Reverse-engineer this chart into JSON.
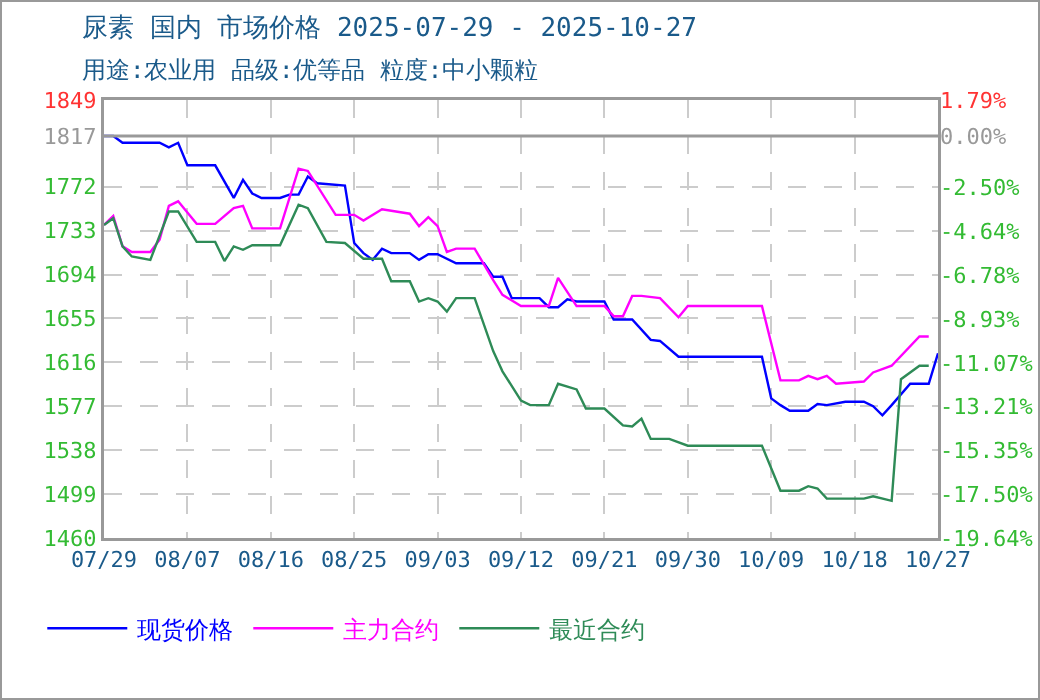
{
  "chart_data": {
    "type": "line",
    "title": "尿素 国内 市场价格 2025-07-29 - 2025-10-27",
    "subtitle": "用途:农业用 品级:优等品 粒度:中小颗粒",
    "xlim": [
      "2025-07-29",
      "2025-10-27"
    ],
    "xticks": [
      {
        "value": "2025-07-29",
        "label": "07/29"
      },
      {
        "value": "2025-08-07",
        "label": "08/07"
      },
      {
        "value": "2025-08-16",
        "label": "08/16"
      },
      {
        "value": "2025-08-25",
        "label": "08/25"
      },
      {
        "value": "2025-09-03",
        "label": "09/03"
      },
      {
        "value": "2025-09-12",
        "label": "09/12"
      },
      {
        "value": "2025-09-21",
        "label": "09/21"
      },
      {
        "value": "2025-09-30",
        "label": "09/30"
      },
      {
        "value": "2025-10-09",
        "label": "10/09"
      },
      {
        "value": "2025-10-18",
        "label": "10/18"
      },
      {
        "value": "2025-10-27",
        "label": "10/27"
      }
    ],
    "ylim": [
      1460,
      1849
    ],
    "yticks": [
      1460,
      1499,
      1538,
      1577,
      1616,
      1655,
      1694,
      1733,
      1772,
      1817,
      1849
    ],
    "y2lim": [
      -19.64,
      1.79
    ],
    "y2ticks": [
      {
        "value": -19.64,
        "label": "-19.64%"
      },
      {
        "value": -17.5,
        "label": "-17.50%"
      },
      {
        "value": -15.35,
        "label": "-15.35%"
      },
      {
        "value": -13.21,
        "label": "-13.21%"
      },
      {
        "value": -11.07,
        "label": "-11.07%"
      },
      {
        "value": -8.93,
        "label": "-8.93%"
      },
      {
        "value": -6.78,
        "label": "-6.78%"
      },
      {
        "value": -4.64,
        "label": "-4.64%"
      },
      {
        "value": -2.5,
        "label": "-2.50%"
      },
      {
        "value": 0,
        "label": "0.00%"
      },
      {
        "value": 1.79,
        "label": "1.79%"
      }
    ],
    "ref_lines": [
      {
        "axis": "y",
        "value": 1817,
        "color": "#999999"
      }
    ],
    "grid": true,
    "legend": "bottom",
    "marker": "none",
    "line_style": "solid",
    "series": [
      {
        "name": "现货价格",
        "color": "#0000ff",
        "x": [
          "2025-07-29",
          "2025-07-30",
          "2025-07-31",
          "2025-08-04",
          "2025-08-05",
          "2025-08-06",
          "2025-08-07",
          "2025-08-10",
          "2025-08-12",
          "2025-08-13",
          "2025-08-14",
          "2025-08-15",
          "2025-08-17",
          "2025-08-18",
          "2025-08-19",
          "2025-08-20",
          "2025-08-21",
          "2025-08-24",
          "2025-08-25",
          "2025-08-26",
          "2025-08-27",
          "2025-08-28",
          "2025-08-29",
          "2025-08-31",
          "2025-09-01",
          "2025-09-02",
          "2025-09-03",
          "2025-09-05",
          "2025-09-08",
          "2025-09-09",
          "2025-09-10",
          "2025-09-11",
          "2025-09-14",
          "2025-09-15",
          "2025-09-16",
          "2025-09-17",
          "2025-09-18",
          "2025-09-21",
          "2025-09-22",
          "2025-09-24",
          "2025-09-26",
          "2025-09-27",
          "2025-09-29",
          "2025-10-08",
          "2025-10-09",
          "2025-10-10",
          "2025-10-11",
          "2025-10-13",
          "2025-10-14",
          "2025-10-15",
          "2025-10-17",
          "2025-10-19",
          "2025-10-20",
          "2025-10-21",
          "2025-10-22",
          "2025-10-24",
          "2025-10-26",
          "2025-10-27"
        ],
        "values": [
          1817,
          1817,
          1811,
          1811,
          1807,
          1811,
          1791,
          1791,
          1762,
          1778,
          1766,
          1762,
          1762,
          1765,
          1765,
          1781,
          1775,
          1773,
          1722,
          1713,
          1707,
          1717,
          1713,
          1713,
          1707,
          1712,
          1712,
          1704,
          1704,
          1692,
          1692,
          1673,
          1673,
          1665,
          1665,
          1672,
          1670,
          1670,
          1654,
          1654,
          1636,
          1635,
          1621,
          1621,
          1584,
          1578,
          1573,
          1573,
          1579,
          1578,
          1581,
          1581,
          1577,
          1569,
          1578,
          1597,
          1597,
          1624
        ]
      },
      {
        "name": "主力合约",
        "color": "#ff00ff",
        "x": [
          "2025-07-29",
          "2025-07-30",
          "2025-07-31",
          "2025-08-01",
          "2025-08-03",
          "2025-08-04",
          "2025-08-05",
          "2025-08-06",
          "2025-08-08",
          "2025-08-10",
          "2025-08-12",
          "2025-08-13",
          "2025-08-14",
          "2025-08-17",
          "2025-08-19",
          "2025-08-20",
          "2025-08-23",
          "2025-08-25",
          "2025-08-26",
          "2025-08-28",
          "2025-08-31",
          "2025-09-01",
          "2025-09-02",
          "2025-09-03",
          "2025-09-04",
          "2025-09-05",
          "2025-09-07",
          "2025-09-09",
          "2025-09-10",
          "2025-09-12",
          "2025-09-15",
          "2025-09-16",
          "2025-09-18",
          "2025-09-21",
          "2025-09-22",
          "2025-09-23",
          "2025-09-24",
          "2025-09-25",
          "2025-09-27",
          "2025-09-29",
          "2025-09-30",
          "2025-10-08",
          "2025-10-10",
          "2025-10-12",
          "2025-10-13",
          "2025-10-14",
          "2025-10-15",
          "2025-10-16",
          "2025-10-19",
          "2025-10-20",
          "2025-10-22",
          "2025-10-25",
          "2025-10-26"
        ],
        "values": [
          1738,
          1746,
          1719,
          1714,
          1714,
          1725,
          1755,
          1759,
          1739,
          1739,
          1753,
          1755,
          1735,
          1735,
          1788,
          1786,
          1747,
          1747,
          1742,
          1752,
          1748,
          1737,
          1745,
          1737,
          1714,
          1717,
          1717,
          1689,
          1676,
          1666,
          1666,
          1691,
          1666,
          1666,
          1657,
          1657,
          1675,
          1675,
          1673,
          1656,
          1666,
          1666,
          1600,
          1600,
          1604,
          1601,
          1604,
          1597,
          1599,
          1607,
          1613,
          1639,
          1639
        ]
      },
      {
        "name": "最近合约",
        "color": "#2e8b57",
        "x": [
          "2025-07-29",
          "2025-07-30",
          "2025-07-31",
          "2025-08-01",
          "2025-08-03",
          "2025-08-05",
          "2025-08-06",
          "2025-08-08",
          "2025-08-10",
          "2025-08-11",
          "2025-08-12",
          "2025-08-13",
          "2025-08-14",
          "2025-08-17",
          "2025-08-19",
          "2025-08-20",
          "2025-08-22",
          "2025-08-24",
          "2025-08-26",
          "2025-08-28",
          "2025-08-29",
          "2025-08-31",
          "2025-09-01",
          "2025-09-02",
          "2025-09-03",
          "2025-09-04",
          "2025-09-05",
          "2025-09-07",
          "2025-09-09",
          "2025-09-10",
          "2025-09-12",
          "2025-09-13",
          "2025-09-15",
          "2025-09-16",
          "2025-09-18",
          "2025-09-19",
          "2025-09-21",
          "2025-09-23",
          "2025-09-24",
          "2025-09-25",
          "2025-09-26",
          "2025-09-28",
          "2025-09-30",
          "2025-10-08",
          "2025-10-10",
          "2025-10-12",
          "2025-10-13",
          "2025-10-14",
          "2025-10-15",
          "2025-10-19",
          "2025-10-20",
          "2025-10-22",
          "2025-10-23",
          "2025-10-25",
          "2025-10-26"
        ],
        "values": [
          1738,
          1744,
          1719,
          1710,
          1707,
          1750,
          1750,
          1723,
          1723,
          1706,
          1719,
          1716,
          1720,
          1720,
          1756,
          1753,
          1723,
          1722,
          1708,
          1708,
          1688,
          1688,
          1670,
          1673,
          1670,
          1661,
          1673,
          1673,
          1626,
          1608,
          1582,
          1578,
          1578,
          1597,
          1592,
          1575,
          1575,
          1560,
          1559,
          1566,
          1548,
          1548,
          1542,
          1542,
          1502,
          1502,
          1506,
          1504,
          1495,
          1495,
          1497,
          1493,
          1601,
          1613,
          1613
        ]
      }
    ]
  }
}
